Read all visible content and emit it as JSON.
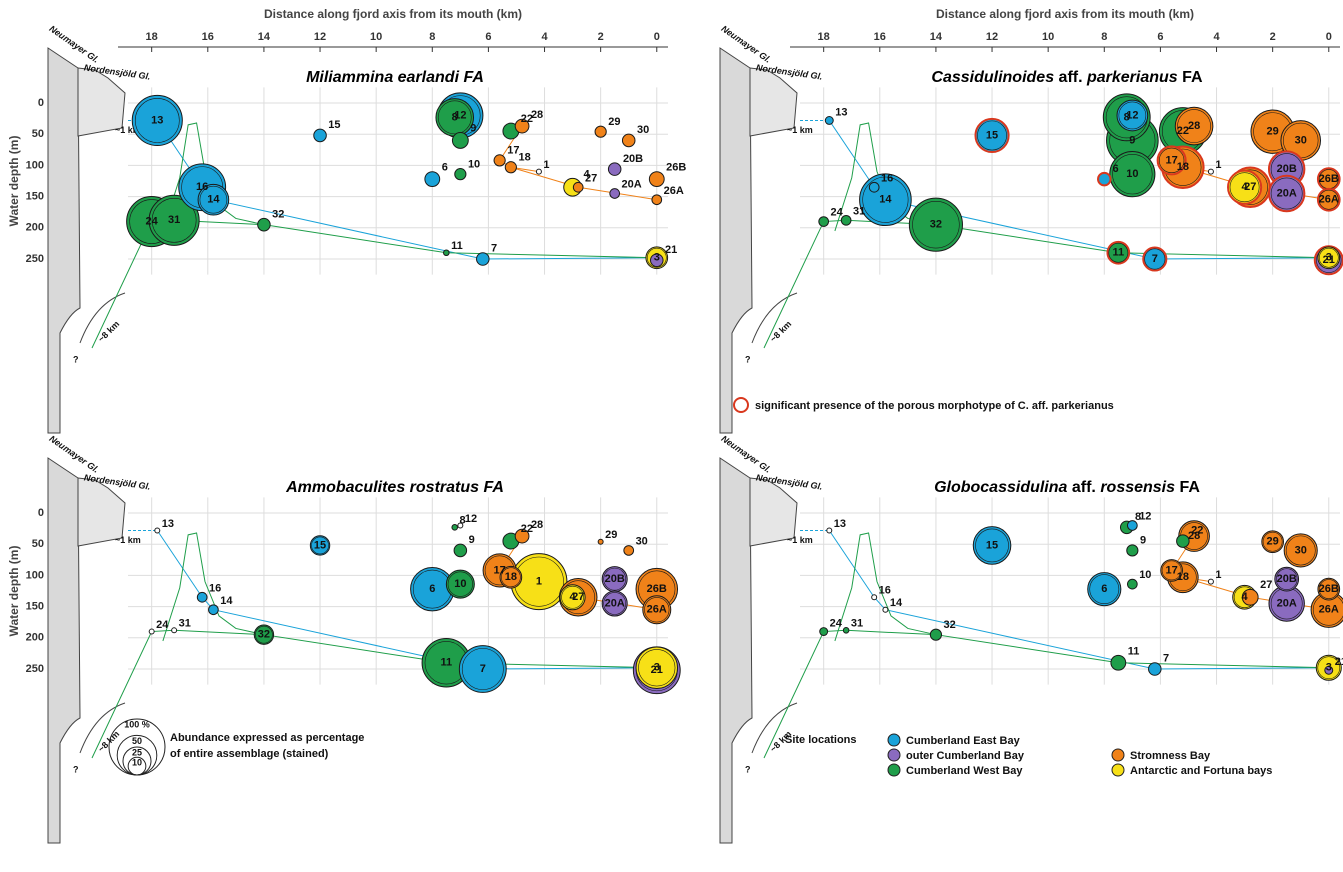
{
  "annotations": {
    "glacier1": "Neumayer Gl.",
    "glacier2": "Nordensjöld Gl.",
    "dist1": "~1 km",
    "dist2": "~8 km",
    "unknown": "?"
  },
  "legend": {
    "title": "Site locations",
    "groups": [
      {
        "name": "Cumberland East Bay",
        "color": "#1aa3d9"
      },
      {
        "name": "outer Cumberland Bay",
        "color": "#8a6bbf"
      },
      {
        "name": "Cumberland West Bay",
        "color": "#1f9e4a"
      },
      {
        "name": "Stromness Bay",
        "color": "#f08219"
      },
      {
        "name": "Antarctic and Fortuna bays",
        "color": "#f7e017"
      }
    ]
  },
  "size_legend": {
    "values": [
      {
        "value": 100,
        "label": "100 %"
      },
      50,
      25,
      10
    ],
    "text": [
      "Abundance expressed as percentage",
      "of entire assemblage (stained)"
    ]
  },
  "porous_note": "significant presence of the porous morphotype of C. aff. parkerianus",
  "chart_data": [
    {
      "type": "bubble",
      "title": [
        "Miliammina earlandi FA"
      ],
      "x_label": "Distance along fjord axis from its mouth (km)",
      "y_label": "Water depth (m)",
      "xlim": [
        19.2,
        -0.4
      ],
      "ylim": [
        -25,
        275
      ],
      "xticks": [
        18,
        16,
        14,
        12,
        10,
        8,
        6,
        4,
        2,
        0
      ],
      "yticks": [
        0,
        50,
        100,
        150,
        200,
        250
      ],
      "grid": true,
      "sites": [
        "13",
        "15",
        "12",
        "8",
        "9",
        "22",
        "28",
        "29",
        "30",
        "17",
        "18",
        "1",
        "20B",
        "26B",
        "6",
        "10",
        "4",
        "27",
        "20A",
        "26A",
        "16",
        "14",
        "24",
        "31",
        "32",
        "11",
        "7",
        "3",
        "21"
      ],
      "x": [
        17.8,
        12,
        7,
        7.2,
        7,
        5.2,
        4.8,
        2,
        1,
        5.6,
        5.2,
        4.2,
        1.5,
        0,
        8,
        7,
        3,
        2.8,
        1.5,
        0,
        16.2,
        15.8,
        18,
        17.2,
        14,
        7.5,
        6.2,
        0,
        0
      ],
      "values": [
        28,
        52,
        20,
        23,
        60,
        45,
        37,
        46,
        60,
        92,
        103,
        110,
        106,
        122,
        122,
        114,
        135,
        135,
        145,
        155,
        135,
        155,
        190,
        188,
        195,
        240,
        250,
        248,
        252
      ],
      "groups": [
        0,
        0,
        0,
        2,
        2,
        2,
        3,
        3,
        3,
        3,
        3,
        4,
        1,
        3,
        0,
        2,
        4,
        3,
        1,
        3,
        0,
        0,
        2,
        2,
        2,
        2,
        0,
        4,
        1
      ],
      "sizes": [
        80,
        5,
        65,
        45,
        8,
        8,
        6,
        4,
        5,
        4,
        4,
        0,
        5,
        7,
        7,
        4,
        10,
        3,
        3,
        3,
        70,
        30,
        80,
        80,
        5,
        1,
        5,
        15,
        5
      ]
    },
    {
      "type": "bubble",
      "title": [
        "Cassidulinoides",
        " aff. ",
        "parkerianus",
        " FA"
      ],
      "x_label": "Distance along fjord axis from its mouth (km)",
      "xlim": [
        19.2,
        -0.4
      ],
      "ylim": [
        -25,
        275
      ],
      "xticks": [
        18,
        16,
        14,
        12,
        10,
        8,
        6,
        4,
        2,
        0
      ],
      "yticks": [
        0,
        50,
        100,
        150,
        200,
        250
      ],
      "grid": true,
      "sites": [
        "13",
        "15",
        "12",
        "8",
        "9",
        "22",
        "28",
        "29",
        "30",
        "17",
        "18",
        "1",
        "20B",
        "26B",
        "6",
        "10",
        "4",
        "27",
        "20A",
        "26A",
        "16",
        "14",
        "24",
        "31",
        "32",
        "11",
        "7",
        "3",
        "21"
      ],
      "x": [
        17.8,
        12,
        7,
        7.2,
        7,
        5.2,
        4.8,
        2,
        1,
        5.6,
        5.2,
        4.2,
        1.5,
        0,
        8,
        7,
        3,
        2.8,
        1.5,
        0,
        16.2,
        15.8,
        18,
        17.2,
        14,
        7.5,
        6.2,
        0,
        0
      ],
      "values": [
        28,
        52,
        20,
        23,
        60,
        45,
        37,
        46,
        60,
        92,
        103,
        110,
        106,
        122,
        122,
        114,
        135,
        135,
        145,
        155,
        135,
        155,
        190,
        188,
        195,
        240,
        250,
        248,
        252
      ],
      "groups": [
        0,
        0,
        0,
        2,
        2,
        2,
        3,
        3,
        3,
        3,
        3,
        4,
        1,
        3,
        0,
        2,
        4,
        3,
        1,
        3,
        0,
        0,
        2,
        2,
        2,
        2,
        0,
        4,
        1
      ],
      "sizes": [
        2,
        35,
        30,
        70,
        85,
        70,
        45,
        60,
        50,
        25,
        55,
        0,
        40,
        15,
        5,
        65,
        35,
        50,
        40,
        15,
        3,
        85,
        3,
        3,
        90,
        15,
        17,
        15,
        25
      ],
      "porous": [
        false,
        true,
        false,
        false,
        false,
        false,
        false,
        false,
        false,
        true,
        true,
        false,
        true,
        true,
        true,
        false,
        true,
        true,
        true,
        true,
        false,
        false,
        false,
        false,
        false,
        true,
        true,
        false,
        true
      ]
    },
    {
      "type": "bubble",
      "title": [
        "Ammobaculites rostratus FA"
      ],
      "y_label": "Water depth (m)",
      "xlim": [
        19.2,
        -0.4
      ],
      "ylim": [
        -25,
        275
      ],
      "xticks": [
        18,
        16,
        14,
        12,
        10,
        8,
        6,
        4,
        2,
        0
      ],
      "yticks": [
        0,
        50,
        100,
        150,
        200,
        250
      ],
      "grid": true,
      "sites": [
        "13",
        "15",
        "12",
        "8",
        "9",
        "22",
        "28",
        "29",
        "30",
        "17",
        "18",
        "1",
        "20B",
        "26B",
        "6",
        "10",
        "4",
        "27",
        "20A",
        "26A",
        "16",
        "14",
        "24",
        "31",
        "32",
        "11",
        "7",
        "3",
        "21"
      ],
      "x": [
        17.8,
        12,
        7,
        7.2,
        7,
        5.2,
        4.8,
        2,
        1,
        5.6,
        5.2,
        4.2,
        1.5,
        0,
        8,
        7,
        3,
        2.8,
        1.5,
        0,
        16.2,
        15.8,
        18,
        17.2,
        14,
        7.5,
        6.2,
        0,
        0
      ],
      "values": [
        28,
        52,
        20,
        23,
        60,
        45,
        37,
        46,
        60,
        92,
        103,
        110,
        106,
        122,
        122,
        114,
        135,
        135,
        145,
        155,
        135,
        155,
        190,
        188,
        195,
        240,
        250,
        248,
        252
      ],
      "groups": [
        0,
        0,
        0,
        2,
        2,
        2,
        3,
        3,
        3,
        3,
        3,
        4,
        1,
        3,
        0,
        2,
        4,
        3,
        1,
        3,
        0,
        0,
        2,
        2,
        2,
        2,
        0,
        4,
        1
      ],
      "sizes": [
        0,
        12,
        0,
        1,
        5,
        8,
        6,
        0.5,
        3,
        35,
        15,
        100,
        20,
        55,
        60,
        25,
        20,
        45,
        20,
        25,
        3,
        3,
        0,
        0,
        12,
        75,
        70,
        55,
        70
      ]
    },
    {
      "type": "bubble",
      "title": [
        "Globocassidulina",
        " aff. ",
        "rossensis",
        " FA"
      ],
      "xlim": [
        19.2,
        -0.4
      ],
      "ylim": [
        -25,
        275
      ],
      "xticks": [
        18,
        16,
        14,
        12,
        10,
        8,
        6,
        4,
        2,
        0
      ],
      "yticks": [
        0,
        50,
        100,
        150,
        200,
        250
      ],
      "grid": true,
      "sites": [
        "13",
        "15",
        "12",
        "8",
        "9",
        "22",
        "28",
        "29",
        "30",
        "17",
        "18",
        "1",
        "20B",
        "26B",
        "6",
        "10",
        "4",
        "27",
        "20A",
        "26A",
        "16",
        "14",
        "24",
        "31",
        "32",
        "11",
        "7",
        "3",
        "21"
      ],
      "x": [
        17.8,
        12,
        7,
        7.2,
        7,
        5.2,
        4.8,
        2,
        1,
        5.6,
        5.2,
        4.2,
        1.5,
        0,
        8,
        7,
        3,
        2.8,
        1.5,
        0,
        16.2,
        15.8,
        18,
        17.2,
        14,
        7.5,
        6.2,
        0,
        0
      ],
      "values": [
        28,
        52,
        20,
        23,
        60,
        45,
        37,
        46,
        60,
        92,
        103,
        110,
        106,
        122,
        122,
        114,
        135,
        135,
        145,
        155,
        135,
        155,
        190,
        188,
        195,
        240,
        250,
        248,
        252
      ],
      "groups": [
        0,
        0,
        0,
        2,
        2,
        2,
        3,
        3,
        3,
        3,
        3,
        4,
        1,
        3,
        0,
        2,
        4,
        3,
        1,
        3,
        0,
        0,
        2,
        2,
        2,
        2,
        0,
        4,
        1
      ],
      "sizes": [
        0,
        45,
        3,
        5,
        4,
        5,
        30,
        15,
        35,
        15,
        30,
        0,
        18,
        15,
        35,
        3,
        18,
        8,
        40,
        40,
        0,
        0,
        2,
        1,
        4,
        7,
        5,
        20,
        2
      ]
    }
  ]
}
